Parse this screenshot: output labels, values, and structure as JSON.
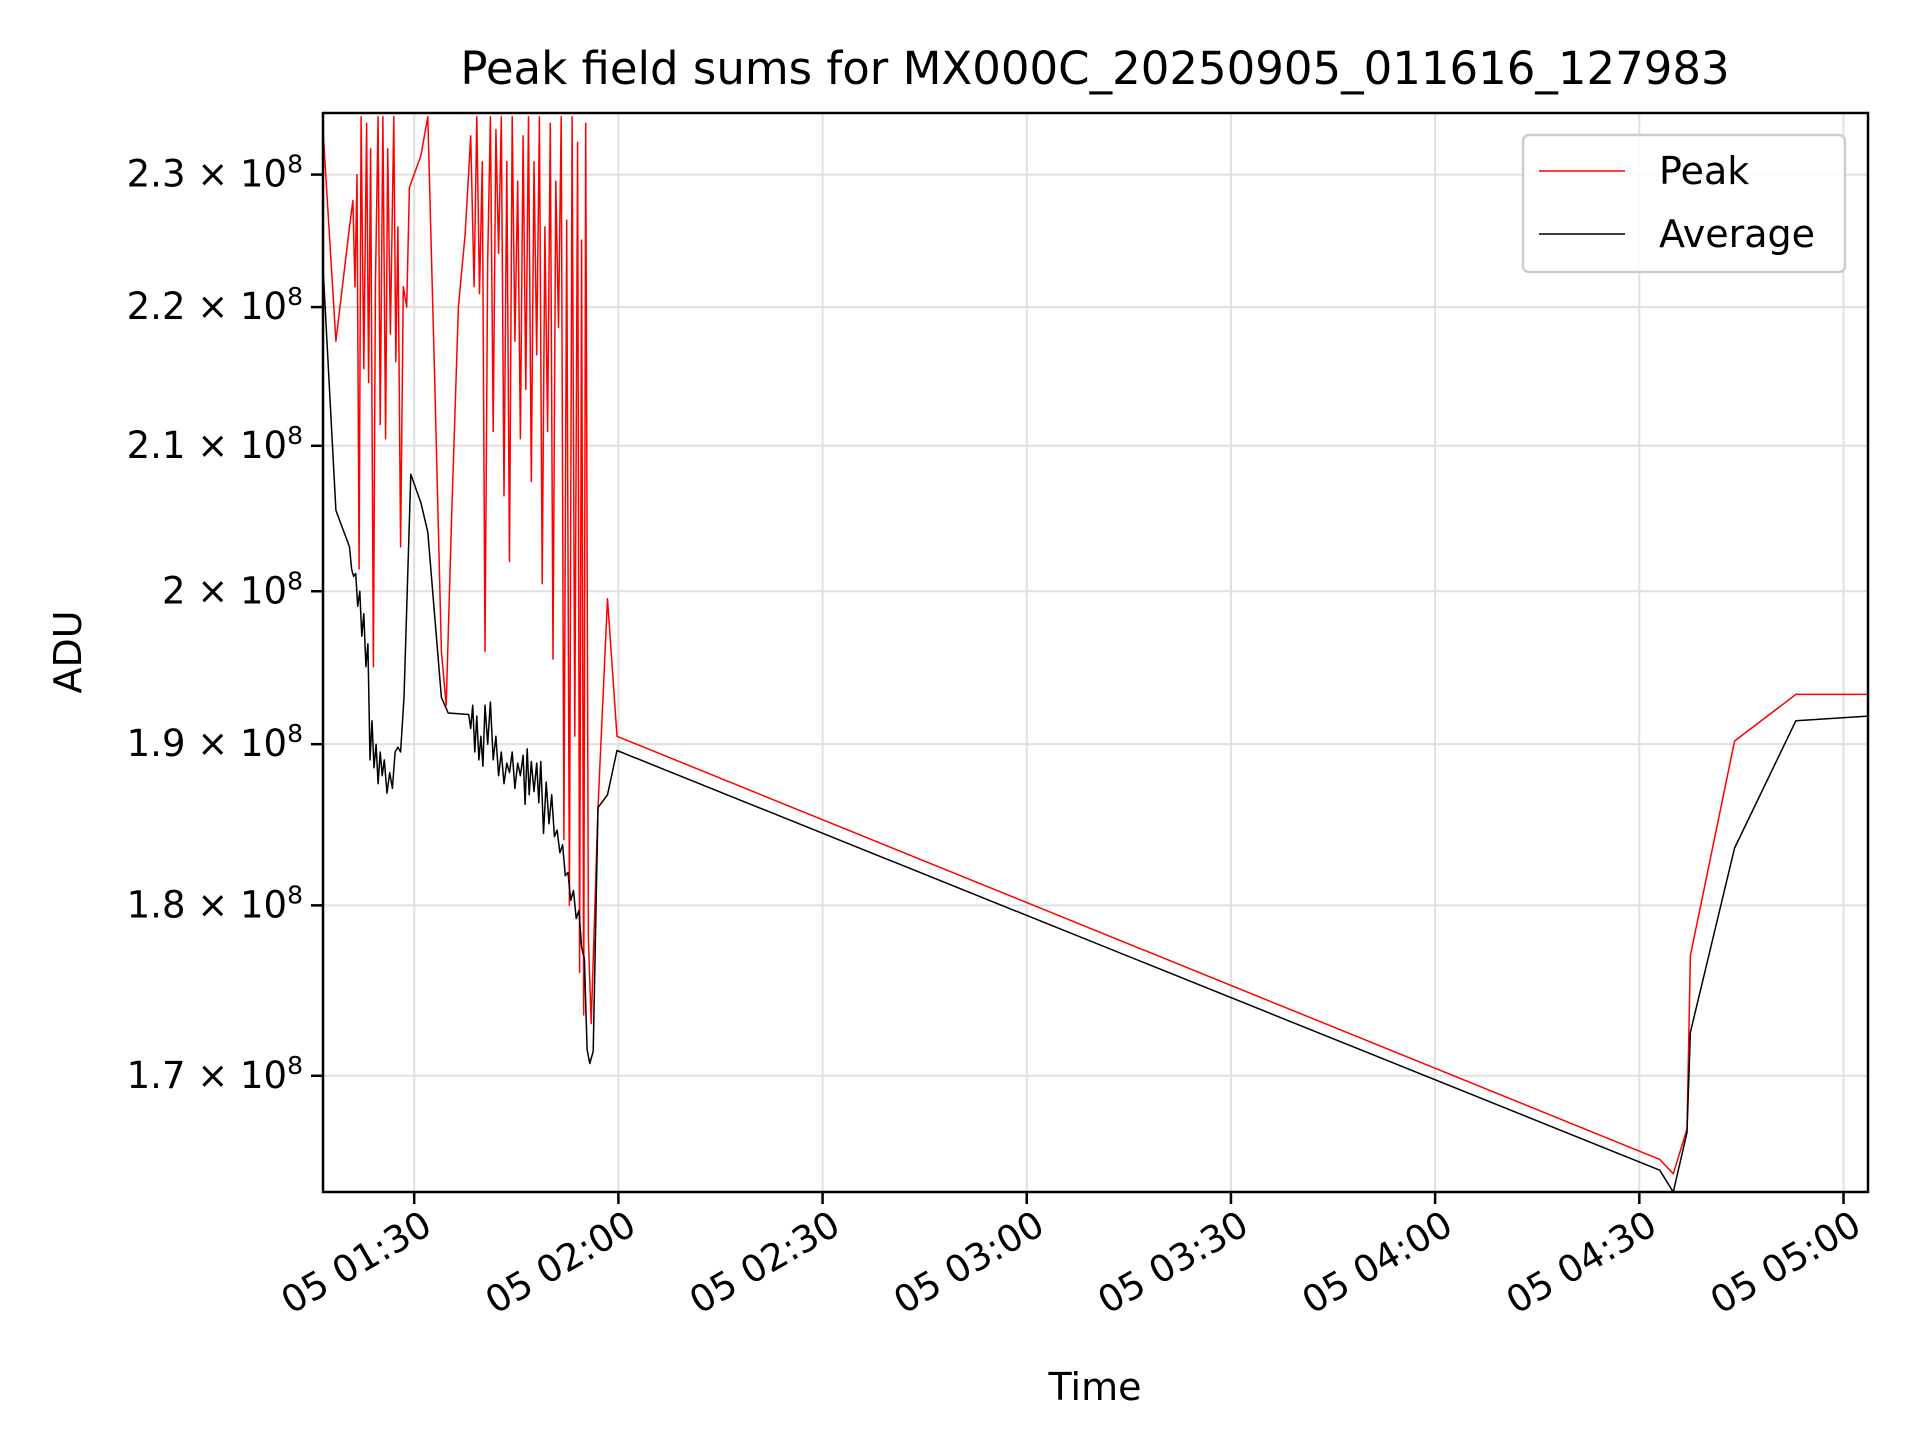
{
  "chart_data": {
    "type": "line",
    "title": "Peak field sums for MX000C_20250905_011616_127983",
    "xlabel": "Time",
    "ylabel": "ADU",
    "y_scale": "log",
    "x_unit": "minutes past 2025-09-05 00:00",
    "xlim": [
      76.6,
      303.6
    ],
    "ylim": [
      163500000,
      234800000
    ],
    "grid": true,
    "legend_position": "top-right",
    "x_ticks": [
      {
        "value": 90,
        "label": "05 01:30"
      },
      {
        "value": 120,
        "label": "05 02:00"
      },
      {
        "value": 150,
        "label": "05 02:30"
      },
      {
        "value": 180,
        "label": "05 03:00"
      },
      {
        "value": 210,
        "label": "05 03:30"
      },
      {
        "value": 240,
        "label": "05 04:00"
      },
      {
        "value": 270,
        "label": "05 04:30"
      },
      {
        "value": 300,
        "label": "05 05:00"
      }
    ],
    "y_ticks": [
      {
        "value": 170000000,
        "mantissa": "1.7",
        "times": "×",
        "base": "10",
        "exp": "8"
      },
      {
        "value": 180000000,
        "mantissa": "1.8",
        "times": "×",
        "base": "10",
        "exp": "8"
      },
      {
        "value": 190000000,
        "mantissa": "1.9",
        "times": "×",
        "base": "10",
        "exp": "8"
      },
      {
        "value": 200000000,
        "mantissa": "2",
        "times": "×",
        "base": "10",
        "exp": "8"
      },
      {
        "value": 210000000,
        "mantissa": "2.1",
        "times": "×",
        "base": "10",
        "exp": "8"
      },
      {
        "value": 220000000,
        "mantissa": "2.2",
        "times": "×",
        "base": "10",
        "exp": "8"
      },
      {
        "value": 230000000,
        "mantissa": "2.3",
        "times": "×",
        "base": "10",
        "exp": "8"
      }
    ],
    "series": [
      {
        "name": "Peak",
        "color": "#ff0000",
        "points": [
          [
            76.6,
            233500000
          ],
          [
            78.5,
            217500000
          ],
          [
            80.5,
            226000000
          ],
          [
            81.0,
            228000000
          ],
          [
            81.3,
            221500000
          ],
          [
            81.6,
            230000000
          ],
          [
            81.9,
            201500000
          ],
          [
            82.2,
            234500000
          ],
          [
            82.6,
            215500000
          ],
          [
            83.0,
            234000000
          ],
          [
            83.3,
            214500000
          ],
          [
            83.6,
            232000000
          ],
          [
            84.0,
            195000000
          ],
          [
            84.3,
            221500000
          ],
          [
            84.7,
            234500000
          ],
          [
            85.0,
            211500000
          ],
          [
            85.4,
            234500000
          ],
          [
            85.8,
            210500000
          ],
          [
            86.1,
            232000000
          ],
          [
            86.5,
            218000000
          ],
          [
            87.0,
            234500000
          ],
          [
            87.3,
            216000000
          ],
          [
            87.6,
            226000000
          ],
          [
            88.0,
            203000000
          ],
          [
            88.4,
            221500000
          ],
          [
            88.9,
            220000000
          ],
          [
            89.3,
            229000000
          ],
          [
            91.0,
            231500000
          ],
          [
            92.0,
            234500000
          ],
          [
            93.0,
            215000000
          ],
          [
            94.0,
            196000000
          ],
          [
            94.7,
            192500000
          ],
          [
            95.5,
            205000000
          ],
          [
            96.5,
            220000000
          ],
          [
            97.5,
            225500000
          ],
          [
            98.3,
            233000000
          ],
          [
            98.8,
            221500000
          ],
          [
            99.2,
            234500000
          ],
          [
            99.6,
            221000000
          ],
          [
            100.0,
            231000000
          ],
          [
            100.4,
            196000000
          ],
          [
            100.8,
            223500000
          ],
          [
            101.2,
            234500000
          ],
          [
            101.6,
            211000000
          ],
          [
            102.0,
            233500000
          ],
          [
            102.4,
            224000000
          ],
          [
            102.8,
            234500000
          ],
          [
            103.2,
            206500000
          ],
          [
            103.6,
            231000000
          ],
          [
            104.0,
            202000000
          ],
          [
            104.4,
            234500000
          ],
          [
            104.8,
            217500000
          ],
          [
            105.2,
            229500000
          ],
          [
            105.6,
            210500000
          ],
          [
            106.0,
            233000000
          ],
          [
            106.4,
            214000000
          ],
          [
            106.8,
            234500000
          ],
          [
            107.2,
            207500000
          ],
          [
            107.6,
            231000000
          ],
          [
            108.0,
            216500000
          ],
          [
            108.4,
            234500000
          ],
          [
            108.8,
            200500000
          ],
          [
            109.2,
            226000000
          ],
          [
            109.6,
            211000000
          ],
          [
            110.0,
            234000000
          ],
          [
            110.4,
            195500000
          ],
          [
            110.8,
            229500000
          ],
          [
            111.2,
            218500000
          ],
          [
            111.6,
            234500000
          ],
          [
            112.0,
            184000000
          ],
          [
            112.4,
            226500000
          ],
          [
            112.8,
            180000000
          ],
          [
            113.2,
            234500000
          ],
          [
            113.6,
            190500000
          ],
          [
            114.0,
            232500000
          ],
          [
            114.3,
            176000000
          ],
          [
            114.6,
            225000000
          ],
          [
            114.9,
            173500000
          ],
          [
            115.2,
            234000000
          ],
          [
            115.6,
            178000000
          ],
          [
            116.0,
            173000000
          ],
          [
            117.0,
            186000000
          ],
          [
            118.4,
            199500000
          ],
          [
            119.8,
            190500000
          ],
          [
            273.0,
            165300000
          ],
          [
            275.0,
            164500000
          ],
          [
            277.0,
            167000000
          ],
          [
            277.5,
            177000000
          ],
          [
            284.0,
            190200000
          ],
          [
            293.0,
            193200000
          ],
          [
            303.6,
            193200000
          ]
        ]
      },
      {
        "name": "Average",
        "color": "#000000",
        "points": [
          [
            76.6,
            223000000
          ],
          [
            78.5,
            205500000
          ],
          [
            80.5,
            203000000
          ],
          [
            80.8,
            201500000
          ],
          [
            81.1,
            201000000
          ],
          [
            81.4,
            201200000
          ],
          [
            81.7,
            199000000
          ],
          [
            82.0,
            200000000
          ],
          [
            82.3,
            197000000
          ],
          [
            82.6,
            198500000
          ],
          [
            82.9,
            195000000
          ],
          [
            83.2,
            196500000
          ],
          [
            83.5,
            189000000
          ],
          [
            83.8,
            191500000
          ],
          [
            84.1,
            188500000
          ],
          [
            84.4,
            190000000
          ],
          [
            84.7,
            187500000
          ],
          [
            85.0,
            189500000
          ],
          [
            85.3,
            188000000
          ],
          [
            85.6,
            189000000
          ],
          [
            86.0,
            186900000
          ],
          [
            86.4,
            188200000
          ],
          [
            86.8,
            187200000
          ],
          [
            87.2,
            189500000
          ],
          [
            87.6,
            189800000
          ],
          [
            88.0,
            189500000
          ],
          [
            88.5,
            193000000
          ],
          [
            89.5,
            208000000
          ],
          [
            91.0,
            206000000
          ],
          [
            92.0,
            204000000
          ],
          [
            94.0,
            193000000
          ],
          [
            95.0,
            192000000
          ],
          [
            98.0,
            191900000
          ],
          [
            98.3,
            191000000
          ],
          [
            98.6,
            192500000
          ],
          [
            98.9,
            189500000
          ],
          [
            99.2,
            191800000
          ],
          [
            99.5,
            189000000
          ],
          [
            99.8,
            190500000
          ],
          [
            100.1,
            188600000
          ],
          [
            100.4,
            192500000
          ],
          [
            100.8,
            190000000
          ],
          [
            101.2,
            192700000
          ],
          [
            101.6,
            189000000
          ],
          [
            102.0,
            190500000
          ],
          [
            102.4,
            188000000
          ],
          [
            102.8,
            189500000
          ],
          [
            103.2,
            187500000
          ],
          [
            103.6,
            188800000
          ],
          [
            104.0,
            188200000
          ],
          [
            104.4,
            189500000
          ],
          [
            104.8,
            187200000
          ],
          [
            105.2,
            188800000
          ],
          [
            105.6,
            188000000
          ],
          [
            106.0,
            189300000
          ],
          [
            106.3,
            186200000
          ],
          [
            106.6,
            189700000
          ],
          [
            106.9,
            186800000
          ],
          [
            107.2,
            188900000
          ],
          [
            107.6,
            187000000
          ],
          [
            108.0,
            188800000
          ],
          [
            108.3,
            186300000
          ],
          [
            108.6,
            188900000
          ],
          [
            109.0,
            184400000
          ],
          [
            109.4,
            187600000
          ],
          [
            109.8,
            185000000
          ],
          [
            110.2,
            186800000
          ],
          [
            110.6,
            184200000
          ],
          [
            111.0,
            184600000
          ],
          [
            111.4,
            183200000
          ],
          [
            111.8,
            183700000
          ],
          [
            112.2,
            181800000
          ],
          [
            112.6,
            182000000
          ],
          [
            113.0,
            180300000
          ],
          [
            113.4,
            180900000
          ],
          [
            113.8,
            179200000
          ],
          [
            114.2,
            179700000
          ],
          [
            114.6,
            177500000
          ],
          [
            115.0,
            176800000
          ],
          [
            115.4,
            171500000
          ],
          [
            115.8,
            170700000
          ],
          [
            116.3,
            171400000
          ],
          [
            117.0,
            186000000
          ],
          [
            118.4,
            186800000
          ],
          [
            119.8,
            189600000
          ],
          [
            273.0,
            164700000
          ],
          [
            275.0,
            163500000
          ],
          [
            277.0,
            166800000
          ],
          [
            277.5,
            172500000
          ],
          [
            284.0,
            183500000
          ],
          [
            293.0,
            191500000
          ],
          [
            303.6,
            191800000
          ]
        ]
      }
    ]
  }
}
